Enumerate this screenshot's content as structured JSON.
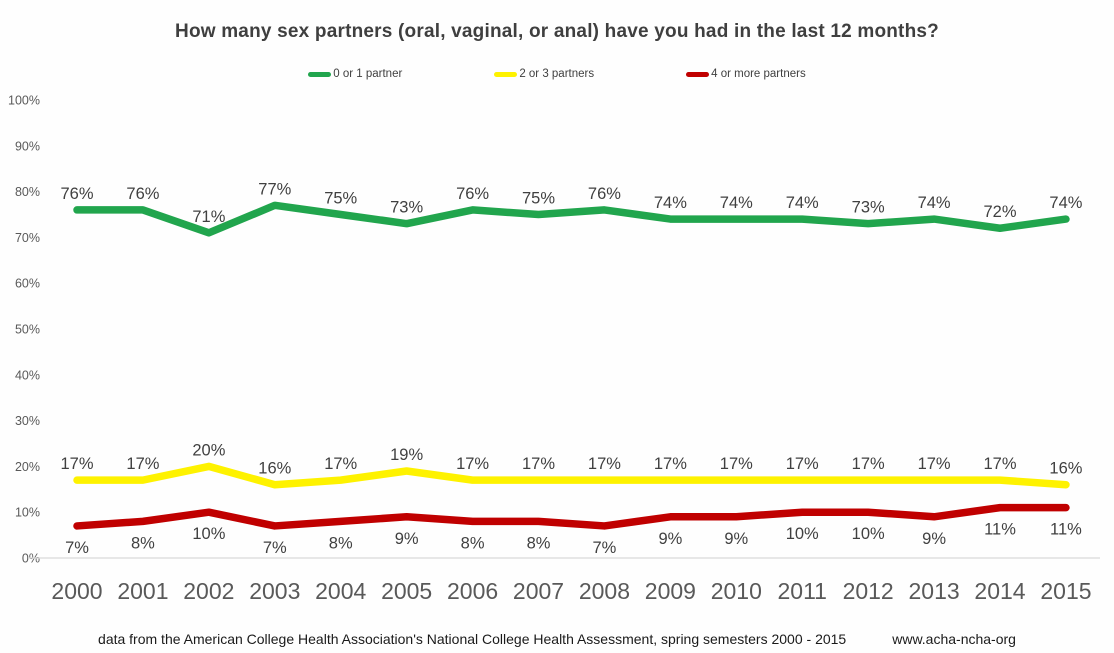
{
  "title": "How many sex partners (oral, vaginal, or anal) have you had in the last 12 months?",
  "colors": {
    "green": "#21a54d",
    "yellow": "#fef200",
    "red": "#c00000",
    "axis_line": "#d9d9d9",
    "title_text": "#3f3f3f",
    "tick_text": "#595959",
    "label_text": "#404040"
  },
  "chart_data": {
    "type": "line",
    "title": "How many sex partners (oral, vaginal, or anal) have you had in the last 12 months?",
    "x": [
      2000,
      2001,
      2002,
      2003,
      2004,
      2005,
      2006,
      2007,
      2008,
      2009,
      2010,
      2011,
      2012,
      2013,
      2014,
      2015
    ],
    "series": [
      {
        "name": "0 or 1 partner",
        "color_key": "green",
        "label_position": "above",
        "values": [
          76,
          76,
          71,
          77,
          75,
          73,
          76,
          75,
          76,
          74,
          74,
          74,
          73,
          74,
          72,
          74
        ]
      },
      {
        "name": "2 or 3 partners",
        "color_key": "yellow",
        "label_position": "above",
        "values": [
          17,
          17,
          20,
          16,
          17,
          19,
          17,
          17,
          17,
          17,
          17,
          17,
          17,
          17,
          17,
          16
        ]
      },
      {
        "name": "4 or more partners",
        "color_key": "red",
        "label_position": "below",
        "values": [
          7,
          8,
          10,
          7,
          8,
          9,
          8,
          8,
          7,
          9,
          9,
          10,
          10,
          9,
          11,
          11
        ]
      }
    ],
    "yticks": [
      {
        "v": 0,
        "label": "0%"
      },
      {
        "v": 10,
        "label": "10%"
      },
      {
        "v": 20,
        "label": "20%"
      },
      {
        "v": 30,
        "label": "30%"
      },
      {
        "v": 40,
        "label": "40%"
      },
      {
        "v": 50,
        "label": "50%"
      },
      {
        "v": 60,
        "label": "60%"
      },
      {
        "v": 70,
        "label": "70%"
      },
      {
        "v": 80,
        "label": "80%"
      },
      {
        "v": 90,
        "label": "90%"
      },
      {
        "v": 100,
        "label": "100%"
      }
    ],
    "ylim": [
      0,
      100
    ],
    "grid": false,
    "legend_position": "top",
    "data_label_suffix": "%"
  },
  "footer": {
    "source": "data from the American College Health Association's National College Health Assessment, spring semesters 2000 - 2015",
    "website": "www.acha-ncha-org"
  }
}
